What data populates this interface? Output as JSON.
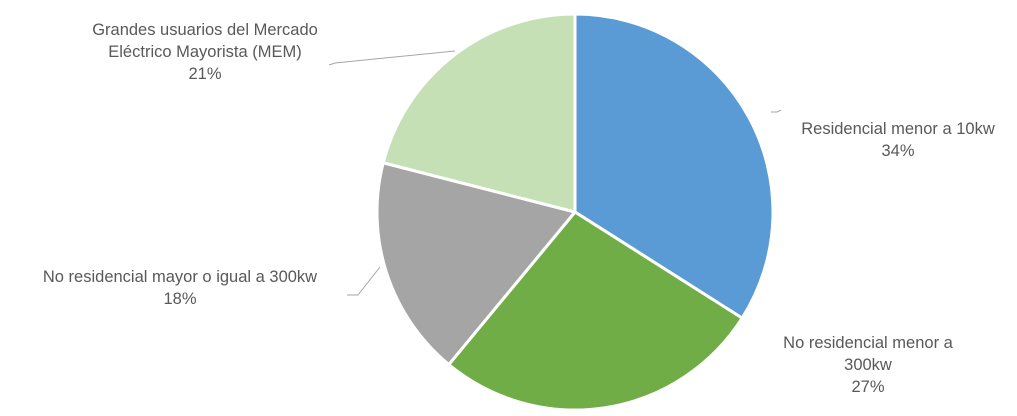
{
  "chart_data": {
    "type": "pie",
    "title": "",
    "legend": "none",
    "slices": [
      {
        "name": "Residencial menor a 10kw",
        "label_lines": [
          "Residencial menor a 10kw"
        ],
        "percent_label": "34%",
        "value": 34,
        "color": "#5B9BD5"
      },
      {
        "name": "No residencial menor a 300kw",
        "label_lines": [
          "No residencial menor a",
          "300kw"
        ],
        "percent_label": "27%",
        "value": 27,
        "color": "#70AD47"
      },
      {
        "name": "No residencial mayor o igual a 300kw",
        "label_lines": [
          "No residencial mayor o igual a 300kw"
        ],
        "percent_label": "18%",
        "value": 18,
        "color": "#A5A5A5"
      },
      {
        "name": "Grandes usuarios del Mercado Eléctrico Mayorista (MEM)",
        "label_lines": [
          "Grandes usuarios del Mercado",
          "Eléctrico Mayorista (MEM)"
        ],
        "percent_label": "21%",
        "value": 21,
        "color": "#C5E0B4"
      }
    ]
  }
}
